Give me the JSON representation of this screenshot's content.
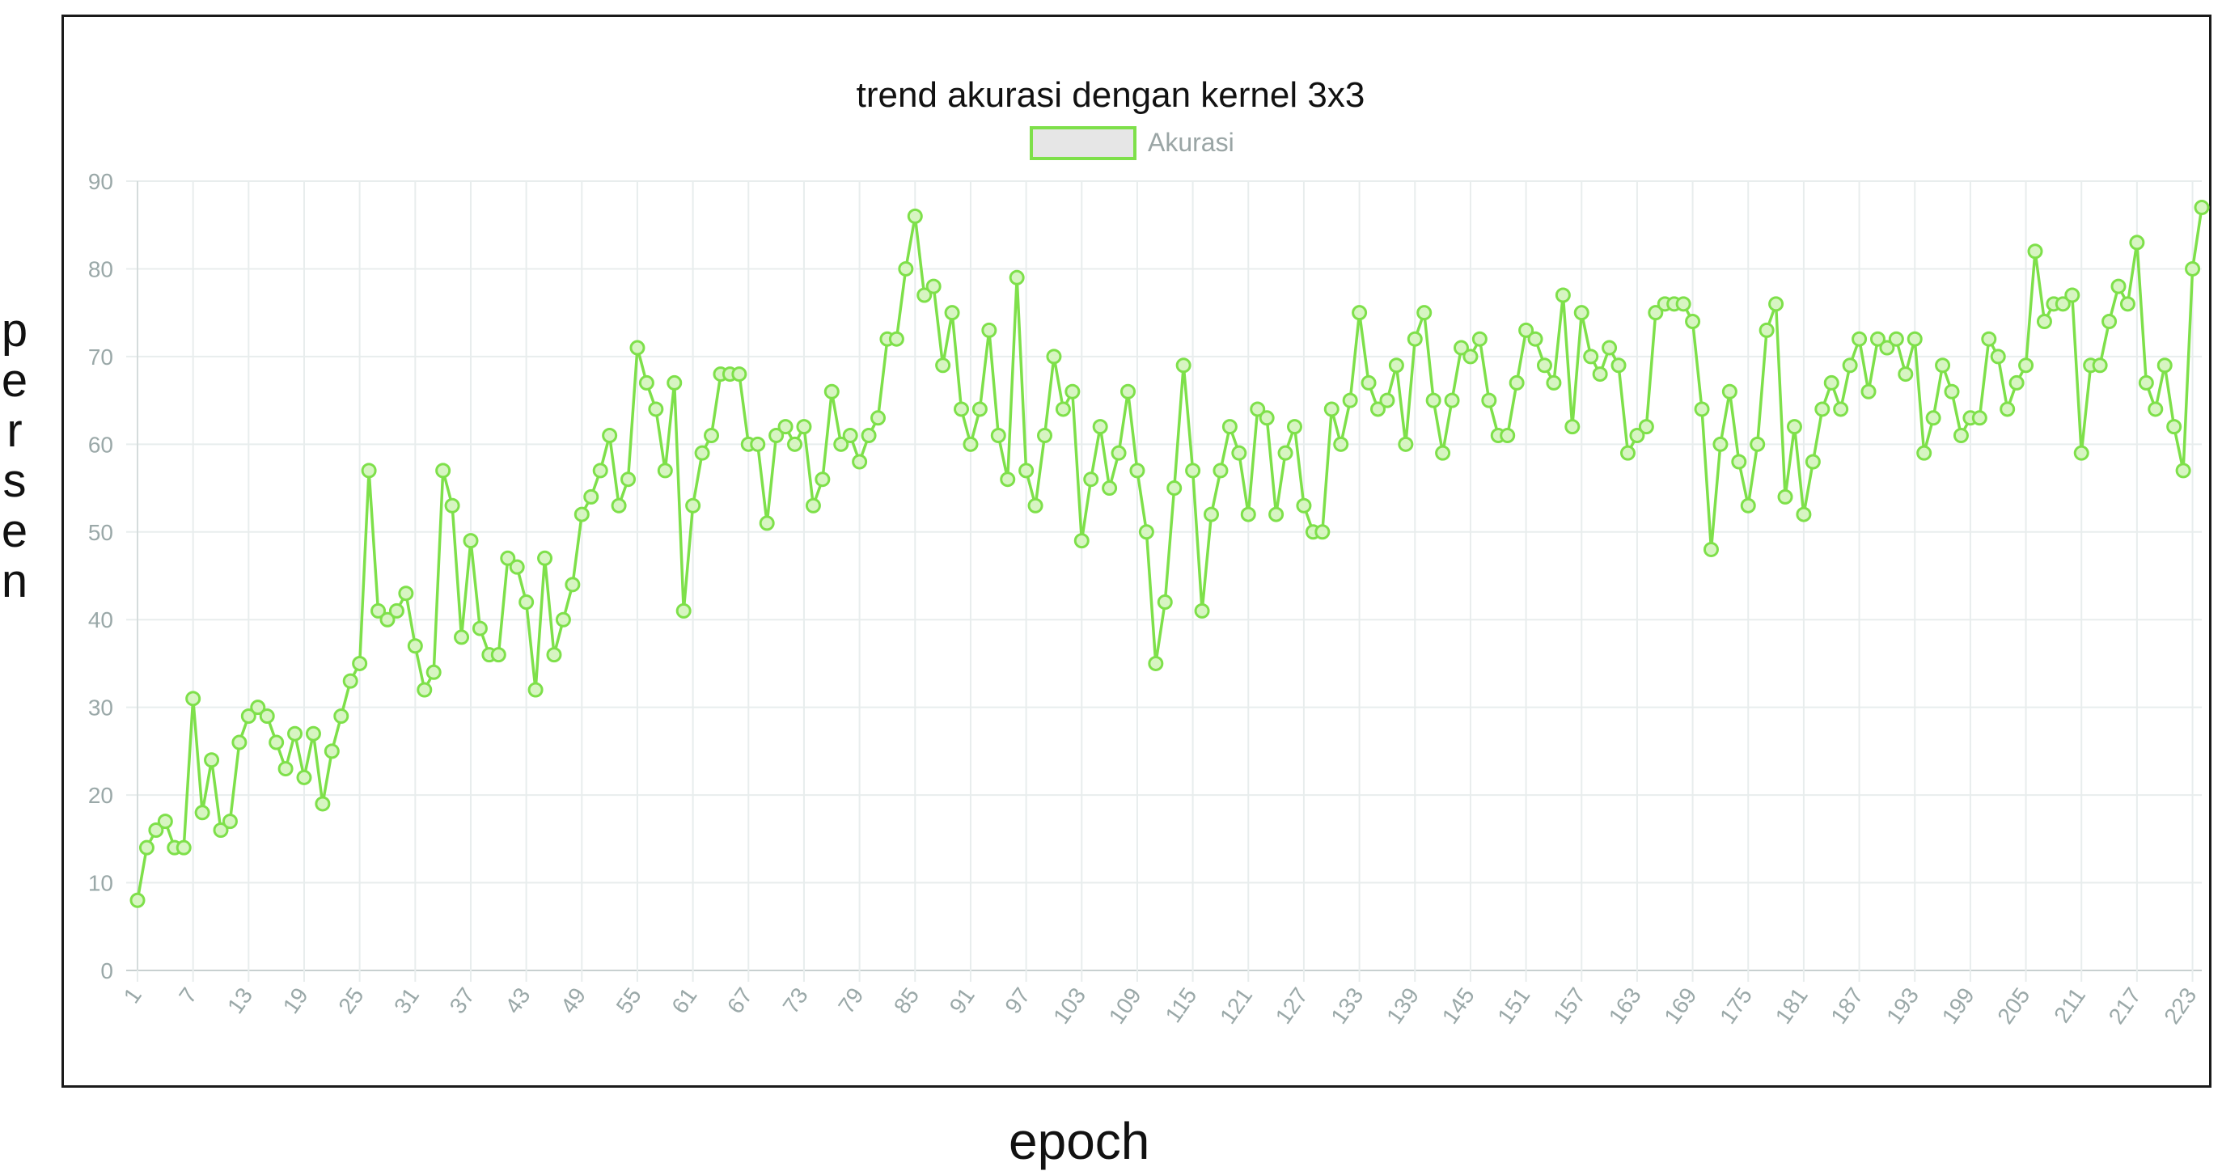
{
  "chart_data": {
    "type": "line",
    "title": "trend akurasi dengan kernel 3x3",
    "xlabel": "epoch",
    "ylabel": "persen",
    "ylim": [
      0,
      90
    ],
    "yticks": [
      0,
      10,
      20,
      30,
      40,
      50,
      60,
      70,
      80,
      90
    ],
    "x_tick_labels": [
      "1",
      "7",
      "13",
      "19",
      "25",
      "31",
      "37",
      "43",
      "49",
      "55",
      "61",
      "67",
      "73",
      "79",
      "85",
      "91",
      "97",
      "103",
      "109",
      "115",
      "121",
      "127",
      "133",
      "139",
      "145",
      "151",
      "157",
      "163",
      "169",
      "175",
      "181",
      "187",
      "193",
      "199",
      "205",
      "211",
      "217",
      "223"
    ],
    "grid": true,
    "legend": "top-center",
    "series": [
      {
        "name": "Akurasi",
        "color": "#7ee04a",
        "x_start": 1,
        "values": [
          8,
          14,
          16,
          17,
          14,
          14,
          31,
          18,
          24,
          16,
          17,
          26,
          29,
          30,
          29,
          26,
          23,
          27,
          22,
          27,
          19,
          25,
          29,
          33,
          35,
          57,
          41,
          40,
          41,
          43,
          37,
          32,
          34,
          57,
          53,
          38,
          49,
          39,
          36,
          36,
          47,
          46,
          42,
          32,
          47,
          36,
          40,
          44,
          52,
          54,
          57,
          61,
          53,
          56,
          71,
          67,
          64,
          57,
          67,
          41,
          53,
          59,
          61,
          68,
          68,
          68,
          60,
          60,
          51,
          61,
          62,
          60,
          62,
          53,
          56,
          66,
          60,
          61,
          58,
          61,
          63,
          72,
          72,
          80,
          86,
          77,
          78,
          69,
          75,
          64,
          60,
          64,
          73,
          61,
          56,
          79,
          57,
          53,
          61,
          70,
          64,
          66,
          49,
          56,
          62,
          55,
          59,
          66,
          57,
          50,
          35,
          42,
          55,
          69,
          57,
          41,
          52,
          57,
          62,
          59,
          52,
          64,
          63,
          52,
          59,
          62,
          53,
          50,
          50,
          64,
          60,
          65,
          75,
          67,
          64,
          65,
          69,
          60,
          72,
          75,
          65,
          59,
          65,
          71,
          70,
          72,
          65,
          61,
          61,
          67,
          73,
          72,
          69,
          67,
          77,
          62,
          75,
          70,
          68,
          71,
          69,
          59,
          61,
          62,
          75,
          76,
          76,
          76,
          74,
          64,
          48,
          60,
          66,
          58,
          53,
          60,
          73,
          76,
          54,
          62,
          52,
          58,
          64,
          67,
          64,
          69,
          72,
          66,
          72,
          71,
          72,
          68,
          72,
          59,
          63,
          69,
          66,
          61,
          63,
          63,
          72,
          70,
          64,
          67,
          69,
          82,
          74,
          76,
          76,
          77,
          59,
          69,
          69,
          74,
          78,
          76,
          83,
          67,
          64,
          69,
          62,
          57,
          80,
          87
        ]
      }
    ]
  }
}
